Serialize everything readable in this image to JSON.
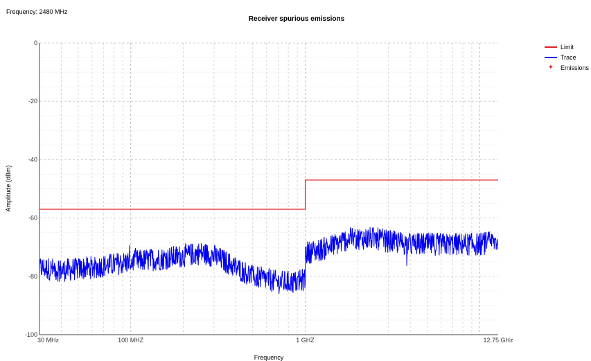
{
  "header": {
    "frequency_note": "Frequency: 2480 MHz"
  },
  "chart_data": {
    "type": "line",
    "title": "Receiver spurious emissions",
    "xlabel": "Frequency",
    "ylabel": "Amplitude (dBm)",
    "x_scale": "log",
    "x_unit": "MHz",
    "xlim": [
      30,
      12750
    ],
    "ylim": [
      -100,
      0
    ],
    "y_ticks": [
      0,
      -20,
      -40,
      -60,
      -80,
      -100
    ],
    "x_tick_labels": [
      {
        "value": 30,
        "label": "30 MHz"
      },
      {
        "value": 100,
        "label": "100 MHZ"
      },
      {
        "value": 1000,
        "label": "1 GHZ"
      },
      {
        "value": 12750,
        "label": "12.75 GHz"
      }
    ],
    "grid": true,
    "legend_position": "top-right",
    "series": [
      {
        "name": "Limit",
        "color": "#e02020",
        "style": "line",
        "x": [
          30,
          1000,
          1000,
          12750
        ],
        "y": [
          -57,
          -57,
          -47,
          -47
        ]
      },
      {
        "name": "Trace",
        "color": "#0000ee",
        "style": "noisy-line",
        "noise_dB": 4,
        "x": [
          30,
          40,
          60,
          100,
          150,
          200,
          250,
          300,
          350,
          400,
          500,
          600,
          700,
          800,
          900,
          999,
          1000,
          1200,
          1500,
          1800,
          2000,
          2500,
          3000,
          4000,
          5000,
          6000,
          8000,
          10000,
          12750
        ],
        "y": [
          -77,
          -78,
          -77,
          -75,
          -74,
          -73,
          -72,
          -73,
          -75,
          -77,
          -80,
          -81,
          -82,
          -82,
          -82,
          -81,
          -72,
          -71,
          -69,
          -67,
          -67,
          -67,
          -68,
          -69,
          -69,
          -69,
          -69,
          -69,
          -68
        ]
      },
      {
        "name": "Emissions",
        "color": "#e02020",
        "style": "marker",
        "x": [],
        "y": []
      }
    ]
  }
}
